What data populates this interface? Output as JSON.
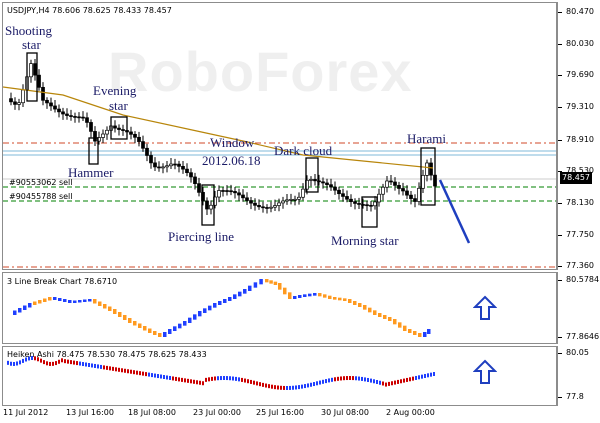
{
  "main": {
    "title": "USDJPY,H4  78.606 78.625 78.433 78.457",
    "watermark": "RoboForex",
    "current_price": "78.457",
    "y_ticks": [
      "80.470",
      "80.030",
      "79.690",
      "79.310",
      "78.910",
      "78.530",
      "78.130",
      "77.750",
      "77.360"
    ],
    "orders": [
      {
        "label": "#90553062 sell",
        "color": "#008000"
      },
      {
        "label": "#90455788 sell",
        "color": "#008000"
      }
    ],
    "annotations": {
      "shooting_star_1": "Shooting",
      "shooting_star_2": "star",
      "evening_star_1": "Evening",
      "evening_star_2": "star",
      "hammer": "Hammer",
      "window_1": "Window",
      "window_2": "2012.06.18",
      "dark_cloud": "Dark cloud",
      "harami": "Harami",
      "piercing_line": "Piercing line",
      "morning_star": "Morning star"
    },
    "colors": {
      "up": "#000000",
      "down": "#000000",
      "ma": "#b8860b",
      "trend": "#1f3fbf",
      "resistance": "#d04a2a",
      "support": "#008000"
    }
  },
  "line_break": {
    "title": "3 Line Break Chart 78.6710",
    "y_ticks": [
      "80.5784",
      "77.8646"
    ],
    "colors": {
      "up": "#1f3fff",
      "down": "#ff9a1f"
    }
  },
  "heiken_ashi": {
    "title": "Heiken Ashi 78.475 78.530 78.475 78.625 78.433",
    "y_ticks": [
      "80.05",
      "77.8"
    ],
    "colors": {
      "up": "#1f3fff",
      "down": "#cc0000"
    }
  },
  "x_labels": [
    "11 Jul 2012",
    "13 Jul 16:00",
    "18 Jul 08:00",
    "23 Jul 00:00",
    "25 Jul 16:00",
    "30 Jul 08:00",
    "2 Aug 00:00"
  ],
  "signals": {
    "line_break": "up-arrow-icon",
    "heiken_ashi": "up-arrow-icon"
  }
}
